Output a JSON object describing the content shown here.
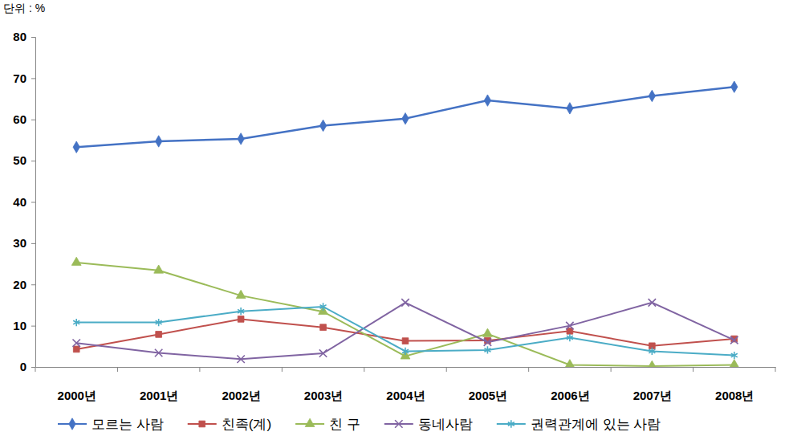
{
  "chart_data": {
    "type": "line",
    "subtitle": "단위 : %",
    "categories": [
      "2000년",
      "2001년",
      "2002년",
      "2003년",
      "2004년",
      "2005년",
      "2006년",
      "2007년",
      "2008년"
    ],
    "series": [
      {
        "name": "모르는 사람",
        "color": "#4472c4",
        "marker": "diamond",
        "values": [
          53.3,
          54.7,
          55.3,
          58.5,
          60.2,
          64.6,
          62.7,
          65.7,
          67.9
        ]
      },
      {
        "name": "친족(계)",
        "color": "#c0504d",
        "marker": "square",
        "values": [
          4.3,
          7.9,
          11.6,
          9.6,
          6.3,
          6.4,
          8.7,
          5.1,
          6.8
        ]
      },
      {
        "name": "친 구",
        "color": "#9bbb59",
        "marker": "triangle",
        "values": [
          25.3,
          23.4,
          17.3,
          13.4,
          2.6,
          8.0,
          0.5,
          0.2,
          0.5
        ]
      },
      {
        "name": "동네사람",
        "color": "#8064a2",
        "marker": "x",
        "values": [
          5.8,
          3.4,
          1.9,
          3.3,
          15.6,
          6.0,
          10.0,
          15.6,
          6.5
        ]
      },
      {
        "name": "권력관계에 있는 사람",
        "color": "#4bacc6",
        "marker": "asterisk",
        "values": [
          10.8,
          10.8,
          13.5,
          14.6,
          3.8,
          4.1,
          7.1,
          3.8,
          2.8
        ]
      }
    ],
    "ylim": [
      0,
      80
    ],
    "yticks": [
      0,
      10,
      20,
      30,
      40,
      50,
      60,
      70,
      80
    ],
    "grid": false,
    "legend": "bottom"
  }
}
